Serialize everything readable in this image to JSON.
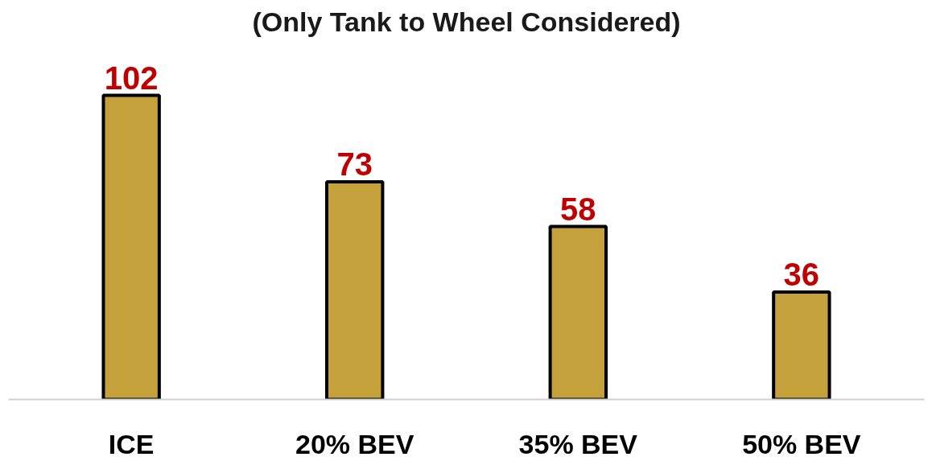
{
  "chart_data": {
    "type": "bar",
    "title": "(Only Tank to Wheel Considered)",
    "categories": [
      "ICE",
      "20% BEV",
      "35% BEV",
      "50% BEV"
    ],
    "values": [
      102,
      73,
      58,
      36
    ],
    "color": "#c4a13a",
    "data_labels": true,
    "grid": false
  }
}
